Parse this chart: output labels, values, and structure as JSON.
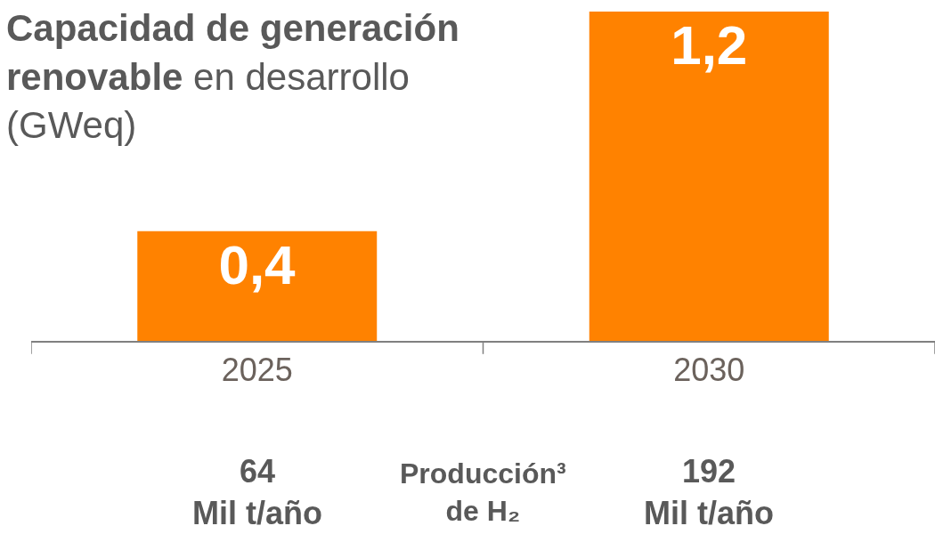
{
  "chart_data": {
    "type": "bar",
    "title": "Capacidad de generación renovable",
    "subtitle": "en desarrollo (GWeq)",
    "categories": [
      "2025",
      "2030"
    ],
    "values": [
      0.4,
      1.2
    ],
    "value_labels": [
      "0,4",
      "1,2"
    ],
    "color": "#ff8200",
    "ylim": [
      0,
      1.2
    ],
    "tick_labels": "x",
    "annotations": [
      "64\nMil t/año",
      "Producción³\nde H₂",
      "192\nMil t/año"
    ]
  }
}
